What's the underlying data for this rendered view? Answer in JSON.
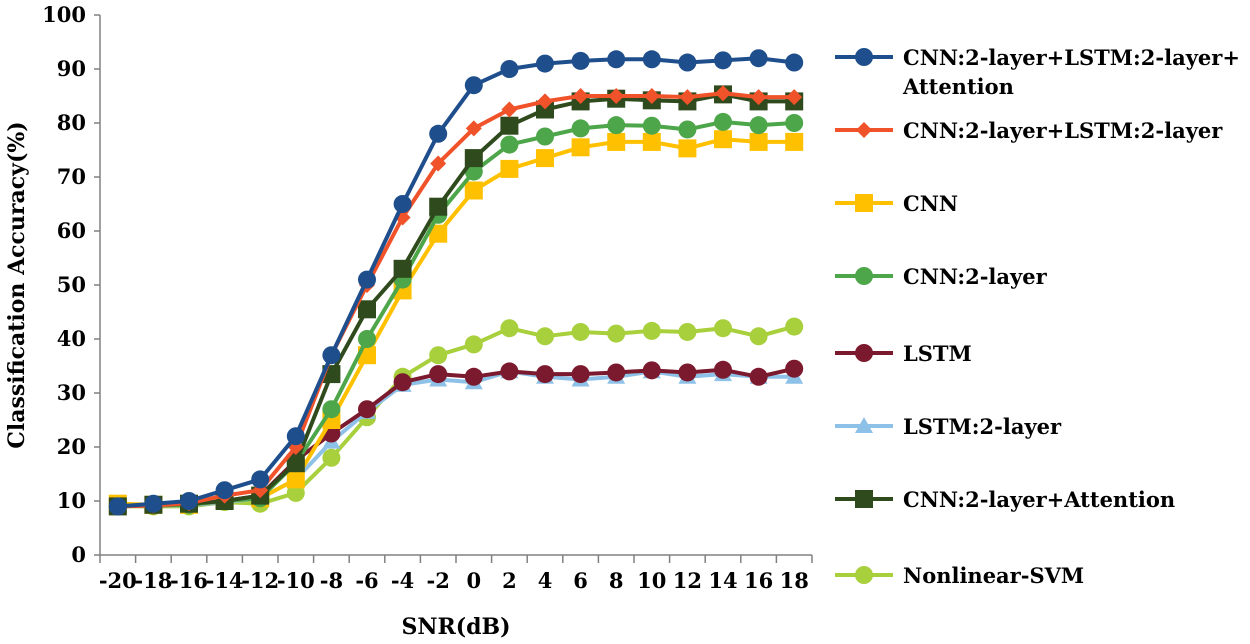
{
  "chart_data": {
    "type": "line",
    "xlabel": "SNR(dB)",
    "ylabel": "Classification Accuracy(%)",
    "x": [
      -20,
      -18,
      -16,
      -14,
      -12,
      -10,
      -8,
      -6,
      -4,
      -2,
      0,
      2,
      4,
      6,
      8,
      10,
      12,
      14,
      16,
      18
    ],
    "ylim": [
      0,
      100
    ],
    "yticks": [
      0,
      10,
      20,
      30,
      40,
      50,
      60,
      70,
      80,
      90,
      100
    ],
    "grid": false,
    "legend_position": "right",
    "series": [
      {
        "name": "CNN:2-layer+LSTM:2-layer+Attention",
        "legend_lines": [
          "CNN:2-layer+LSTM:2-layer+",
          "Attention"
        ],
        "color": "#1f4e8c",
        "marker": "circle",
        "values": [
          9,
          9.5,
          10,
          12,
          14,
          22,
          37,
          51,
          65,
          78,
          87,
          90,
          91,
          91.5,
          91.8,
          91.8,
          91.2,
          91.6,
          92,
          91.2
        ]
      },
      {
        "name": "CNN:2-layer+LSTM:2-layer",
        "legend_lines": [
          "CNN:2-layer+LSTM:2-layer"
        ],
        "color": "#f0522a",
        "marker": "diamond",
        "values": [
          9,
          9.2,
          9.6,
          11,
          12,
          20,
          37,
          50,
          62.5,
          72.5,
          79,
          82.5,
          84,
          85,
          85,
          85,
          84.8,
          85.5,
          84.8,
          84.8
        ]
      },
      {
        "name": "CNN",
        "legend_lines": [
          "CNN"
        ],
        "color": "#ffc000",
        "marker": "square",
        "values": [
          9.5,
          9.3,
          9.3,
          10,
          10.5,
          14,
          25,
          37,
          49,
          59.5,
          67.5,
          71.5,
          73.5,
          75.5,
          76.5,
          76.5,
          75.3,
          77,
          76.5,
          76.5
        ]
      },
      {
        "name": "CNN:2-layer",
        "legend_lines": [
          "CNN:2-layer"
        ],
        "color": "#4ea64a",
        "marker": "circle",
        "values": [
          9,
          9.3,
          9.3,
          10,
          10.5,
          17,
          27,
          40,
          51,
          63,
          71,
          76,
          77.5,
          79,
          79.6,
          79.5,
          78.8,
          80.2,
          79.6,
          80
        ]
      },
      {
        "name": "LSTM",
        "legend_lines": [
          "LSTM"
        ],
        "color": "#7b1a2e",
        "marker": "circle",
        "values": [
          9,
          9.2,
          9.3,
          10,
          11,
          17.5,
          22.5,
          27,
          32,
          33.5,
          33,
          34,
          33.5,
          33.5,
          33.8,
          34.2,
          33.8,
          34.3,
          33,
          34.5
        ]
      },
      {
        "name": "LSTM:2-layer",
        "legend_lines": [
          "LSTM:2-layer"
        ],
        "color": "#8ec1e8",
        "marker": "triangle",
        "values": [
          9,
          9.2,
          9.2,
          9.8,
          10.5,
          14,
          21,
          26.5,
          31.5,
          32.5,
          32,
          34,
          33,
          32.5,
          33,
          34,
          33,
          33.5,
          33,
          33
        ]
      },
      {
        "name": "CNN:2-layer+Attention",
        "legend_lines": [
          "CNN:2-layer+Attention"
        ],
        "color": "#2f4a1c",
        "marker": "square",
        "values": [
          9,
          9.3,
          9.5,
          10,
          11,
          17,
          33.5,
          45.5,
          53,
          64.5,
          73.5,
          79.5,
          82.5,
          84,
          84.5,
          84.2,
          84,
          85.3,
          84,
          84
        ]
      },
      {
        "name": "Nonlinear-SVM",
        "legend_lines": [
          "Nonlinear-SVM"
        ],
        "color": "#a8cf3c",
        "marker": "circle",
        "values": [
          9,
          9,
          9,
          9.8,
          9.5,
          11.5,
          18,
          25.5,
          33,
          37,
          39,
          42,
          40.5,
          41.3,
          41,
          41.5,
          41.3,
          42,
          40.5,
          42.3
        ]
      }
    ]
  }
}
